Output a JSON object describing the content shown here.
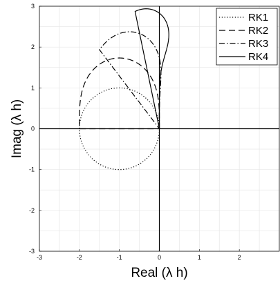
{
  "chart_data": {
    "type": "line",
    "xlabel": "Real (λ h)",
    "ylabel": "Imag (λ h)",
    "xlim": [
      -3,
      3
    ],
    "ylim": [
      -3,
      3
    ],
    "xticks": [
      -3,
      -2,
      -1,
      0,
      1,
      2
    ],
    "yticks": [
      -3,
      -2,
      -1,
      0,
      1,
      2,
      3
    ],
    "grid": true,
    "legend_position": "top-right",
    "series": [
      {
        "name": "RK1",
        "order": 1,
        "style": "dotted"
      },
      {
        "name": "RK2",
        "order": 2,
        "style": "dashed"
      },
      {
        "name": "RK3",
        "order": 3,
        "style": "dash-dot"
      },
      {
        "name": "RK4",
        "order": 4,
        "style": "solid"
      }
    ]
  }
}
